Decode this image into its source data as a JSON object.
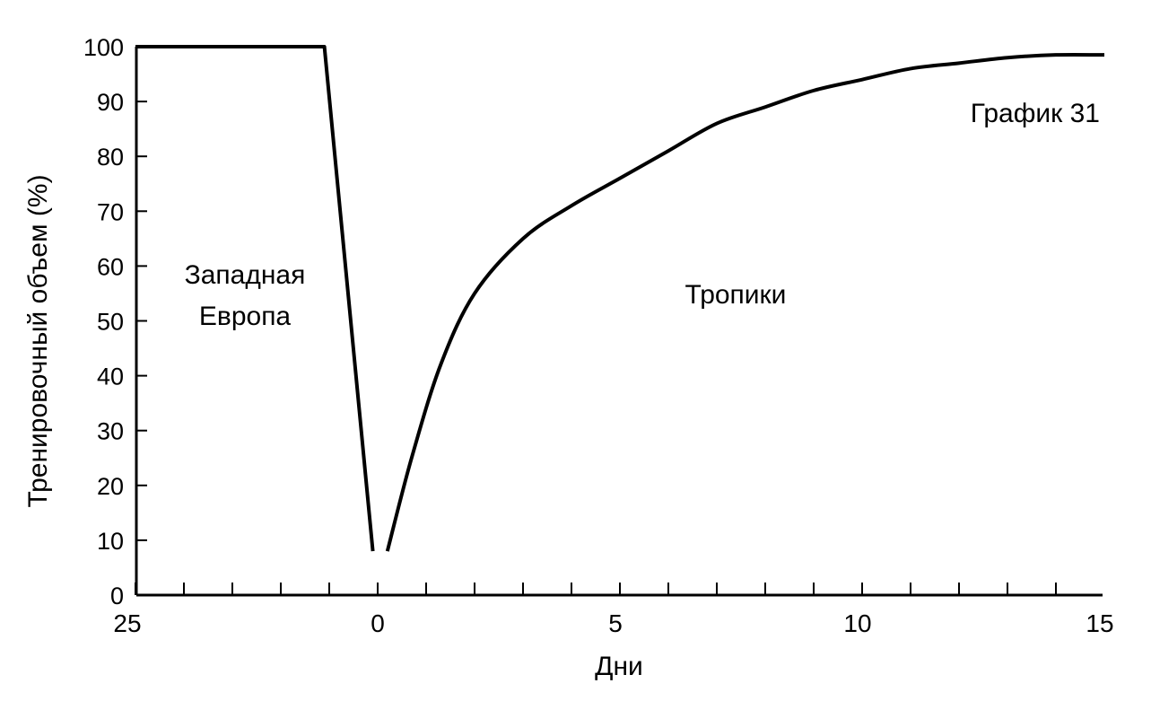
{
  "chart_data": {
    "type": "line",
    "title": "",
    "xlabel": "Дни",
    "ylabel": "Тренировочный объем (%)",
    "ylim": [
      0,
      100
    ],
    "yticks": [
      0,
      10,
      20,
      30,
      40,
      50,
      60,
      70,
      80,
      90,
      100
    ],
    "xtick_labels": [
      "25",
      "0",
      "5",
      "10",
      "15"
    ],
    "grid": false,
    "annotations": [
      {
        "text": "График 31",
        "x": 13.8,
        "y": 90
      },
      {
        "text": "Западная",
        "x": -3.6,
        "y": 59
      },
      {
        "text": "Европа",
        "x": -3.6,
        "y": 52
      },
      {
        "text": "Тропики",
        "x": 7.4,
        "y": 55
      }
    ],
    "series": [
      {
        "segment": "before",
        "x": [
          -5,
          -1.1,
          -0.1
        ],
        "y": [
          100,
          100,
          8
        ]
      },
      {
        "segment": "after",
        "x": [
          0.2,
          0.7,
          1.3,
          2,
          3,
          4,
          5,
          6,
          7,
          8,
          9,
          10,
          11,
          12,
          13,
          14,
          15
        ],
        "y": [
          8,
          25,
          42,
          55,
          65,
          71,
          76,
          81,
          86,
          89,
          92,
          94,
          96,
          97,
          98,
          98.5,
          98.5
        ]
      }
    ]
  }
}
